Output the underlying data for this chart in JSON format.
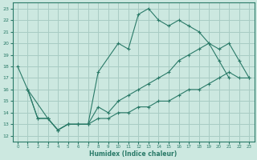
{
  "xlabel": "Humidex (Indice chaleur)",
  "xlim": [
    -0.5,
    23.5
  ],
  "ylim": [
    11.5,
    23.5
  ],
  "xticks": [
    0,
    1,
    2,
    3,
    4,
    5,
    6,
    7,
    8,
    9,
    10,
    11,
    12,
    13,
    14,
    15,
    16,
    17,
    18,
    19,
    20,
    21,
    22,
    23
  ],
  "yticks": [
    12,
    13,
    14,
    15,
    16,
    17,
    18,
    19,
    20,
    21,
    22,
    23
  ],
  "bg_color": "#cce8e0",
  "grid_color": "#a8ccc4",
  "line_color": "#2a7a68",
  "curve1_x": [
    0,
    1,
    3,
    4,
    5,
    6,
    7,
    8,
    10,
    11,
    12,
    13,
    14,
    15,
    16,
    17,
    18,
    19,
    20,
    21
  ],
  "curve1_y": [
    18,
    16,
    13.5,
    12.5,
    13,
    13,
    13,
    17.5,
    20,
    19.5,
    22.5,
    23,
    22,
    21.5,
    22,
    21.5,
    21,
    20,
    18.5,
    17
  ],
  "curve2_x": [
    1,
    2,
    3,
    4,
    5,
    6,
    7,
    8,
    9,
    10,
    11,
    12,
    13,
    14,
    15,
    16,
    17,
    18,
    19,
    20,
    21,
    22,
    23
  ],
  "curve2_y": [
    16,
    13.5,
    13.5,
    12.5,
    13,
    13,
    13,
    14.5,
    14,
    15,
    15.5,
    16,
    16.5,
    17,
    17.5,
    18.5,
    19,
    19.5,
    20,
    19.5,
    20,
    18.5,
    17
  ],
  "curve3_x": [
    1,
    2,
    3,
    4,
    5,
    6,
    7,
    8,
    9,
    10,
    11,
    12,
    13,
    14,
    15,
    16,
    17,
    18,
    19,
    20,
    21,
    22,
    23
  ],
  "curve3_y": [
    16,
    13.5,
    13.5,
    12.5,
    13,
    13,
    13,
    13.5,
    13.5,
    14,
    14,
    14.5,
    14.5,
    15,
    15,
    15.5,
    16,
    16,
    16.5,
    17,
    17.5,
    17,
    17
  ]
}
